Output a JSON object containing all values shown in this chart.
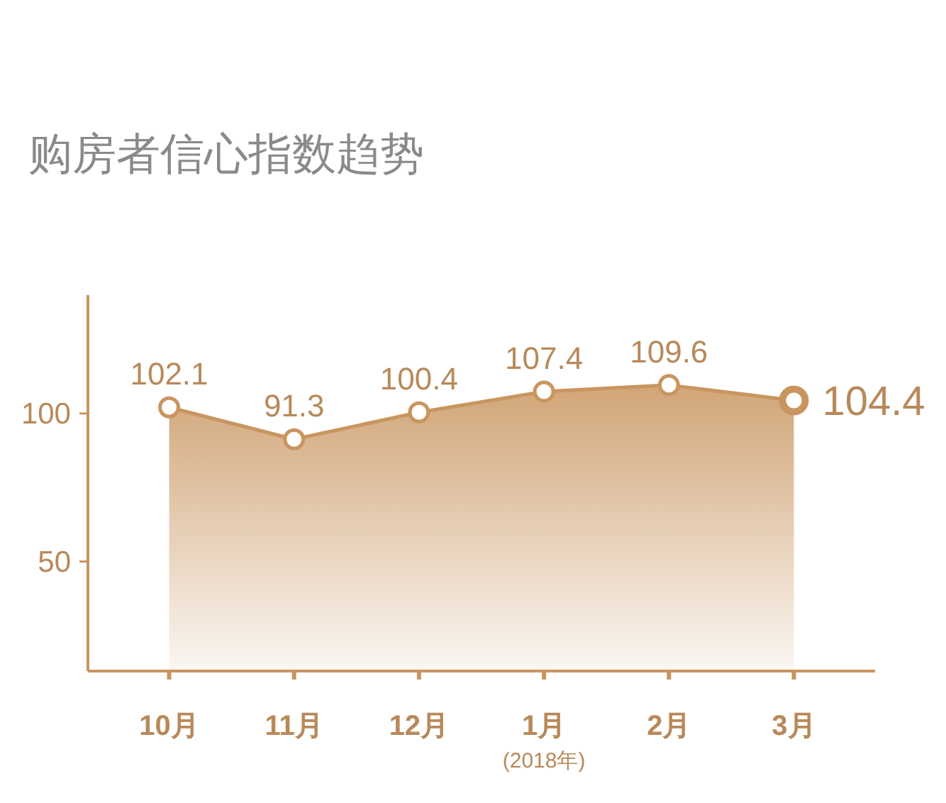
{
  "chart_data": {
    "type": "area",
    "title": "购房者信心指数趋势",
    "categories": [
      "10月",
      "11月",
      "12月",
      "1月",
      "2月",
      "3月"
    ],
    "values": [
      102.1,
      91.3,
      100.4,
      107.4,
      109.6,
      104.4
    ],
    "color": "#c9955f",
    "ylim": [
      13,
      140
    ],
    "yticks": [
      50,
      100
    ],
    "data_labels": true,
    "marker": "circle",
    "line_style": "solid",
    "annotations": [
      "(2018年)"
    ]
  }
}
